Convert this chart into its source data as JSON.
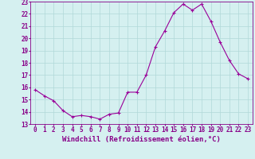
{
  "x": [
    0,
    1,
    2,
    3,
    4,
    5,
    6,
    7,
    8,
    9,
    10,
    11,
    12,
    13,
    14,
    15,
    16,
    17,
    18,
    19,
    20,
    21,
    22,
    23
  ],
  "y": [
    15.8,
    15.3,
    14.9,
    14.1,
    13.6,
    13.7,
    13.6,
    13.4,
    13.8,
    13.9,
    15.6,
    15.6,
    17.0,
    19.3,
    20.6,
    22.1,
    22.8,
    22.3,
    22.8,
    21.4,
    19.7,
    18.2,
    17.1,
    16.7
  ],
  "line_color": "#990099",
  "marker": "s",
  "marker_size": 2,
  "background_color": "#d5f0f0",
  "grid_color": "#b0d8d8",
  "xlabel": "Windchill (Refroidissement éolien,°C)",
  "ylim": [
    13,
    23
  ],
  "xlim_min": -0.5,
  "xlim_max": 23.5,
  "yticks": [
    13,
    14,
    15,
    16,
    17,
    18,
    19,
    20,
    21,
    22,
    23
  ],
  "xticks": [
    0,
    1,
    2,
    3,
    4,
    5,
    6,
    7,
    8,
    9,
    10,
    11,
    12,
    13,
    14,
    15,
    16,
    17,
    18,
    19,
    20,
    21,
    22,
    23
  ],
  "tick_fontsize": 5.5,
  "xlabel_fontsize": 6.5,
  "tick_color": "#880088",
  "axis_color": "#880088"
}
